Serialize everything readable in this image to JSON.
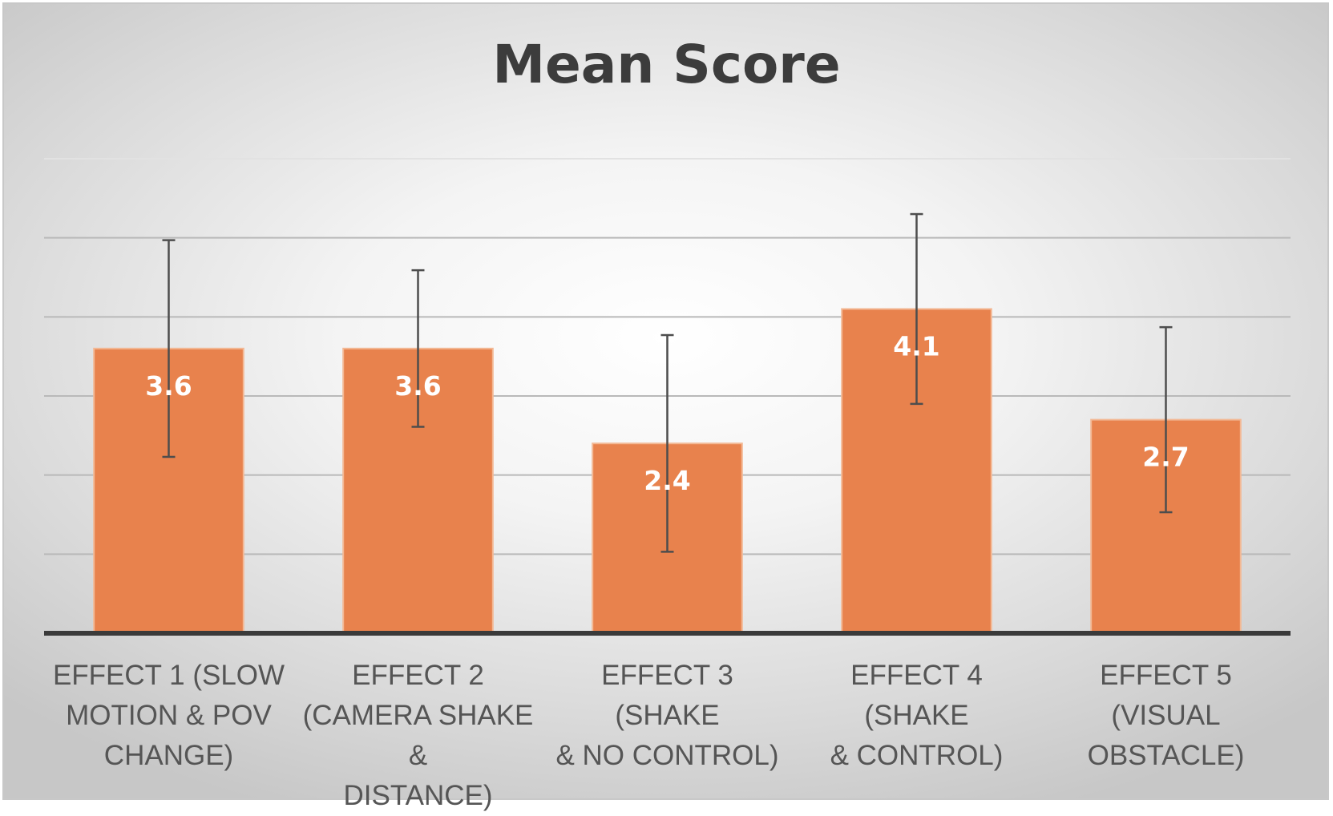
{
  "chart_data": {
    "type": "bar",
    "title": "Mean Score",
    "xlabel": "",
    "ylabel": "",
    "ylim": [
      0,
      6
    ],
    "grid": true,
    "legend": "none",
    "categories": [
      [
        "EFFECT 1 (SLOW",
        "MOTION & POV",
        "CHANGE)"
      ],
      [
        "EFFECT 2",
        "(CAMERA SHAKE &",
        "DISTANCE)"
      ],
      [
        "EFFECT 3 (SHAKE",
        "& NO CONTROL)"
      ],
      [
        "EFFECT 4 (SHAKE",
        "& CONTROL)"
      ],
      [
        "EFFECT 5 (VISUAL",
        "OBSTACLE)"
      ]
    ],
    "series": [
      {
        "values": [
          3.6,
          3.6,
          2.4,
          4.1,
          2.7
        ],
        "labels": [
          "3.6",
          "3.6",
          "2.4",
          "4.1",
          "2.7"
        ],
        "error": [
          1.37,
          0.99,
          1.37,
          1.2,
          1.17
        ],
        "color": "#E8824D"
      }
    ]
  }
}
